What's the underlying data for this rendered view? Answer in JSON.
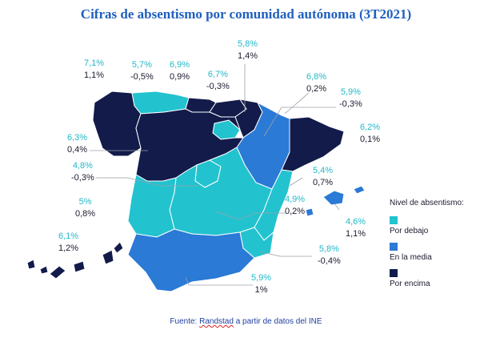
{
  "title": "Cifras de absentismo por comunidad autónoma (3T2021)",
  "colors": {
    "below": "#22c3cf",
    "average": "#2a7ad6",
    "above": "#121b4a",
    "leader": "#9aa0a8"
  },
  "regions": [
    {
      "name": "Galicia",
      "pct": "7,1%",
      "chg": "1,1%",
      "level": "above"
    },
    {
      "name": "Asturias",
      "pct": "5,7%",
      "chg": "-0,5%",
      "level": "below"
    },
    {
      "name": "Cantabria",
      "pct": "6,9%",
      "chg": "0,9%",
      "level": "above"
    },
    {
      "name": "País Vasco",
      "pct": "6,7%",
      "chg": "-0,3%",
      "level": "above"
    },
    {
      "name": "Navarra",
      "pct": "5,8%",
      "chg": "1,4%",
      "level": "above"
    },
    {
      "name": "La Rioja",
      "pct": "6,8%",
      "chg": "0,2%",
      "level": "below"
    },
    {
      "name": "Aragón",
      "pct": "5,9%",
      "chg": "-0,3%",
      "level": "average"
    },
    {
      "name": "Cataluña",
      "pct": "6,2%",
      "chg": "0,1%",
      "level": "above"
    },
    {
      "name": "Castilla y León",
      "pct": "6,3%",
      "chg": "0,4%",
      "level": "above"
    },
    {
      "name": "Madrid",
      "pct": "4,8%",
      "chg": "-0,3%",
      "level": "below"
    },
    {
      "name": "Comunidad Valenciana",
      "pct": "5,4%",
      "chg": "0,7%",
      "level": "below"
    },
    {
      "name": "Castilla-La Mancha",
      "pct": "4,9%",
      "chg": "0,2%",
      "level": "below"
    },
    {
      "name": "Baleares",
      "pct": "4,6%",
      "chg": "1,1%",
      "level": "below"
    },
    {
      "name": "Extremadura",
      "pct": "5%",
      "chg": "0,8%",
      "level": "below"
    },
    {
      "name": "Murcia",
      "pct": "5,8%",
      "chg": "-0,4%",
      "level": "average"
    },
    {
      "name": "Andalucía",
      "pct": "5,9%",
      "chg": "1%",
      "level": "average"
    },
    {
      "name": "Canarias",
      "pct": "6,1%",
      "chg": "1,2%",
      "level": "above"
    }
  ],
  "legend": {
    "title": "Nivel de absentismo:",
    "below": "Por debajo",
    "average": "En la media",
    "above": "Por encima"
  },
  "footer": {
    "prefix": "Fuente: ",
    "brand": "Randstad",
    "suffix": " a partir de datos del INE"
  }
}
